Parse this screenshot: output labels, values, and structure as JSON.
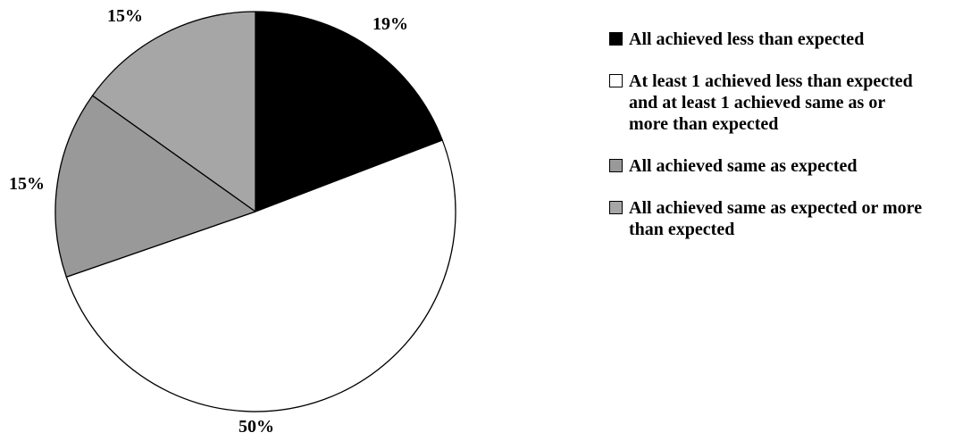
{
  "chart_data": {
    "type": "pie",
    "slices": [
      {
        "name": "All achieved less than expected",
        "value": 19,
        "label": "19%",
        "color": "#000000"
      },
      {
        "name": "At least 1 achieved less than expected and at least 1 achieved same as or more than expected",
        "value": 50,
        "label": "50%",
        "color": "#ffffff"
      },
      {
        "name": "All achieved same as expected",
        "value": 15,
        "label": "15%",
        "color": "#999999"
      },
      {
        "name": "All achieved same as expected or more than expected",
        "value": 15,
        "label": "15%",
        "color": "#a6a6a6"
      }
    ],
    "legend": {
      "position": "right",
      "entries": [
        "All achieved less than expected",
        "At least 1 achieved less than expected and at least 1 achieved same as or more than expected",
        "All achieved same as expected",
        "All achieved same as expected or more than expected"
      ]
    }
  }
}
